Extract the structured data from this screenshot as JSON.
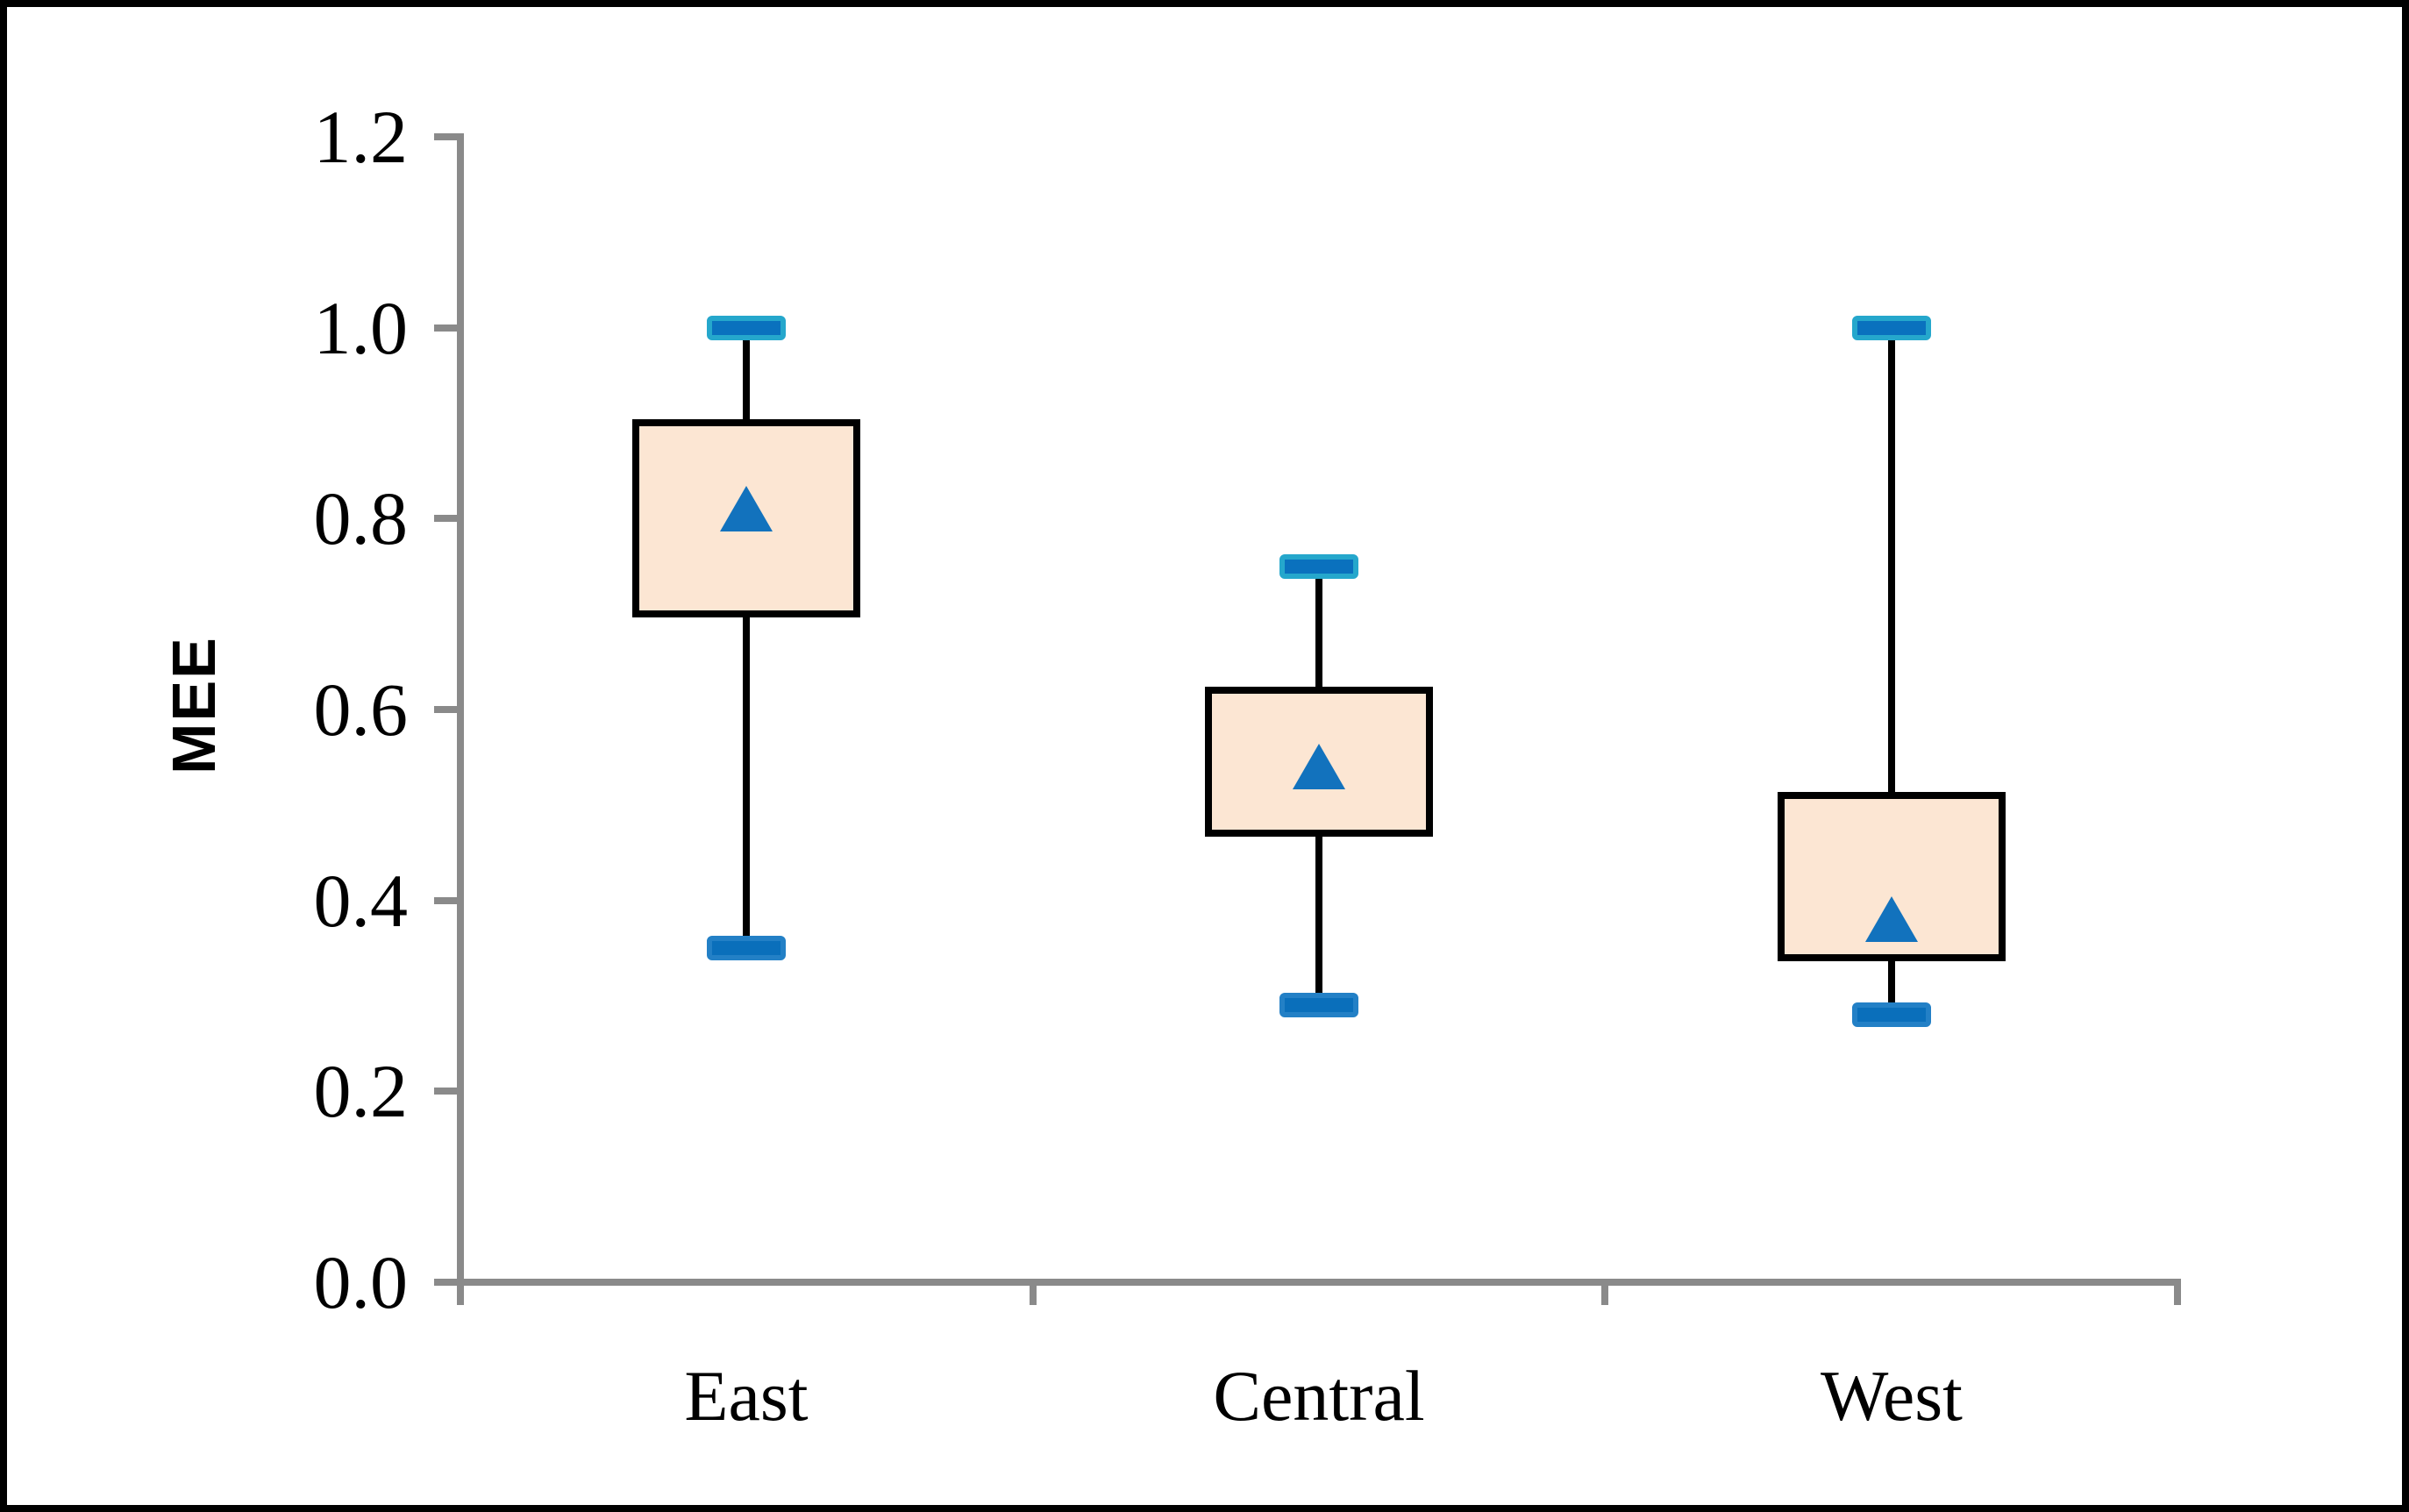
{
  "chart_data": {
    "type": "boxplot",
    "title": "",
    "ylabel": "MEE",
    "xlabel": "",
    "categories": [
      "East",
      "Central",
      "West"
    ],
    "series": [
      {
        "name": "East",
        "min": 0.35,
        "q1": 0.7,
        "mean": 0.81,
        "q3": 0.9,
        "max": 1.0
      },
      {
        "name": "Central",
        "min": 0.29,
        "q1": 0.47,
        "mean": 0.54,
        "q3": 0.62,
        "max": 0.75
      },
      {
        "name": "West",
        "min": 0.28,
        "q1": 0.34,
        "mean": 0.38,
        "q3": 0.51,
        "max": 1.0
      }
    ],
    "mean_marker": "triangle",
    "ylim": [
      0.0,
      1.2
    ],
    "ytick_labels": [
      "0.0",
      "0.2",
      "0.4",
      "0.6",
      "0.8",
      "1.0",
      "1.2"
    ],
    "grid": false,
    "legend": false
  },
  "colors": {
    "background": "#ffffff",
    "figure_border": "#000000",
    "axis": "#8a8a8a",
    "text": "#000000",
    "box_fill": "#fce6d3",
    "box_border": "#000000",
    "whisker": "#000000",
    "cap_max_border": "#25a7cc",
    "cap_max_fill": "#0a71be",
    "cap_min_border": "#2380c6",
    "cap_min_fill": "#0a6fbb",
    "mean_marker_color": "#1272bd"
  }
}
